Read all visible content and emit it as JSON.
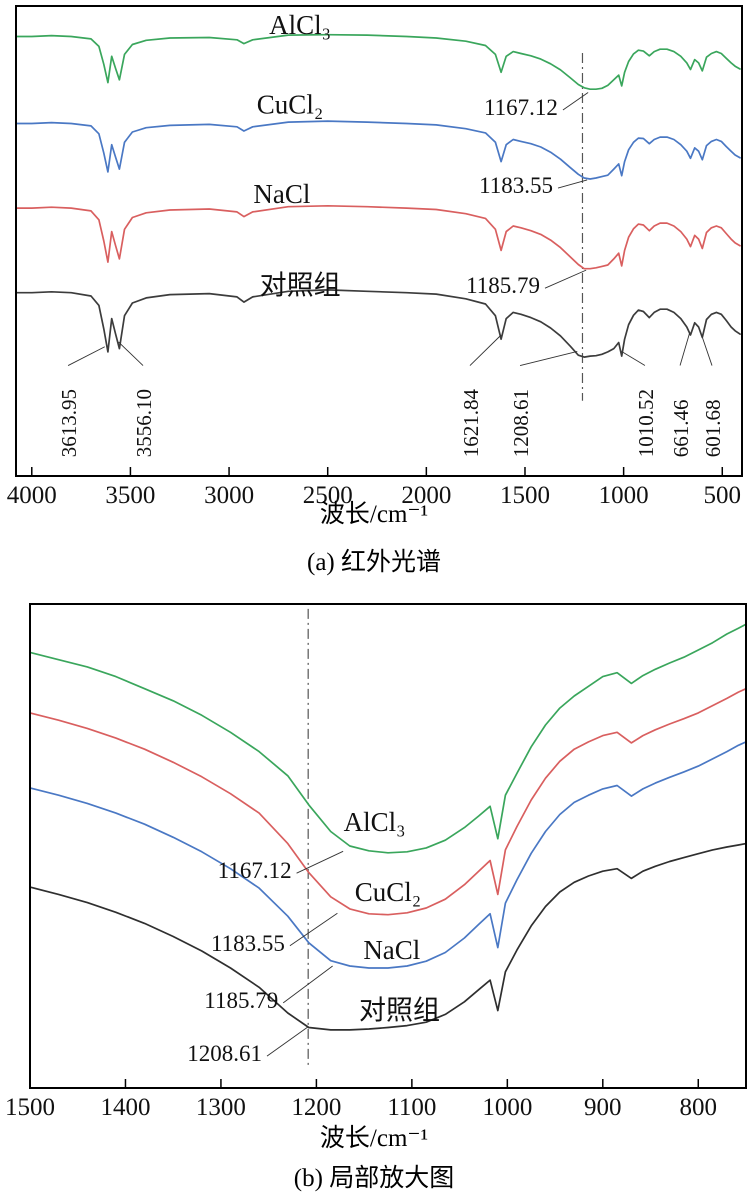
{
  "figure": {
    "background": "#ffffff",
    "axis_color": "#000000",
    "annotation_color": "#000000",
    "reference_line_color": "#555555"
  },
  "chart_data": [
    {
      "id": "a",
      "type": "line",
      "caption": "(a) 红外光谱",
      "xlabel": "波长/cm⁻¹",
      "ylabel": "",
      "grid": false,
      "legend_position": "inline-labels",
      "ylim": [
        0,
        100
      ],
      "x_axis": {
        "range": [
          4080,
          400
        ],
        "reversed": true,
        "ticks": [
          4000,
          3500,
          3000,
          2500,
          2000,
          1500,
          1000,
          500
        ]
      },
      "vline": {
        "x": 1208.61,
        "y_from": 16,
        "y_to": 90,
        "color": "#555555",
        "style": "dash-dot"
      },
      "x": [
        4075,
        4000,
        3900,
        3800,
        3700,
        3660,
        3635,
        3614,
        3595,
        3575,
        3556,
        3530,
        3490,
        3420,
        3300,
        3100,
        2960,
        2925,
        2880,
        2700,
        2500,
        2300,
        2100,
        1950,
        1800,
        1700,
        1650,
        1621,
        1595,
        1560,
        1520,
        1470,
        1420,
        1370,
        1320,
        1270,
        1230,
        1200,
        1170,
        1140,
        1110,
        1080,
        1050,
        1025,
        1010,
        995,
        975,
        950,
        925,
        900,
        870,
        845,
        815,
        780,
        745,
        710,
        680,
        661,
        640,
        620,
        601,
        580,
        555,
        530,
        505,
        480,
        455,
        435,
        410
      ],
      "series": [
        {
          "key": "alcl3",
          "name": "AlCl₃",
          "color": "#3aa65c",
          "y": [
            93.5,
            93.5,
            93.7,
            93.5,
            93.0,
            91.4,
            87.6,
            83.7,
            89.3,
            86.7,
            84.3,
            89.7,
            91.8,
            92.7,
            93.2,
            93.3,
            92.8,
            92.0,
            92.8,
            93.8,
            93.9,
            93.8,
            93.5,
            93.2,
            92.5,
            91.6,
            89.7,
            85.9,
            89.3,
            90.3,
            89.9,
            89.4,
            88.7,
            87.7,
            86.4,
            84.7,
            83.3,
            82.6,
            82.3,
            82.3,
            82.5,
            83.1,
            84.3,
            85.3,
            83.0,
            85.9,
            88.2,
            89.8,
            90.6,
            90.4,
            89.4,
            90.3,
            90.8,
            90.8,
            90.3,
            89.3,
            87.9,
            86.5,
            88.6,
            87.9,
            86.2,
            89.1,
            89.9,
            90.3,
            89.9,
            88.9,
            87.9,
            87.2,
            86.6
          ]
        },
        {
          "key": "cucl2",
          "name": "CuCl₂",
          "color": "#4a78c4",
          "y": [
            75.0,
            75.0,
            75.2,
            75.0,
            74.5,
            72.8,
            68.7,
            64.7,
            70.5,
            67.8,
            65.3,
            71.0,
            73.2,
            74.1,
            74.6,
            74.8,
            74.3,
            73.4,
            74.3,
            75.3,
            75.5,
            75.3,
            75.0,
            74.7,
            73.9,
            73.0,
            71.0,
            66.9,
            70.5,
            71.6,
            71.2,
            70.7,
            70.0,
            68.9,
            67.4,
            65.6,
            64.2,
            63.4,
            63.2,
            63.4,
            63.7,
            64.0,
            65.3,
            66.4,
            63.9,
            66.9,
            69.4,
            71.0,
            71.9,
            71.8,
            70.7,
            71.6,
            72.1,
            72.1,
            71.6,
            70.5,
            69.1,
            67.6,
            69.8,
            69.1,
            67.3,
            70.3,
            71.2,
            71.6,
            71.2,
            70.1,
            69.1,
            68.3,
            67.7
          ]
        },
        {
          "key": "nacl",
          "name": "NaCl",
          "color": "#d95f5f",
          "y": [
            57.0,
            57.0,
            57.2,
            57.0,
            56.4,
            54.5,
            50.0,
            45.5,
            52.0,
            49.0,
            46.2,
            52.5,
            55.0,
            56.0,
            56.6,
            56.8,
            56.2,
            55.2,
            56.2,
            57.3,
            57.5,
            57.3,
            57.0,
            56.7,
            55.8,
            54.8,
            52.5,
            48.0,
            52.0,
            53.2,
            52.8,
            52.2,
            51.4,
            50.2,
            48.6,
            46.6,
            45.0,
            44.1,
            44.1,
            44.3,
            44.6,
            44.9,
            46.2,
            47.4,
            44.7,
            48.0,
            50.8,
            52.6,
            53.6,
            53.4,
            52.2,
            53.2,
            53.8,
            53.8,
            53.2,
            52.0,
            50.4,
            48.8,
            51.2,
            50.4,
            48.4,
            51.8,
            52.8,
            53.2,
            52.8,
            51.6,
            50.4,
            49.6,
            49.0
          ]
        },
        {
          "key": "control",
          "name": "对照组",
          "color": "#3c3c3c",
          "y": [
            39.0,
            39.0,
            39.2,
            39.0,
            38.3,
            36.3,
            31.3,
            26.4,
            33.5,
            30.2,
            27.1,
            34.1,
            36.8,
            37.9,
            38.6,
            38.8,
            38.1,
            37.0,
            38.1,
            39.3,
            39.6,
            39.3,
            39.0,
            38.7,
            37.7,
            36.6,
            34.1,
            29.1,
            33.5,
            34.8,
            34.4,
            33.7,
            32.8,
            31.5,
            29.8,
            27.6,
            25.7,
            25.3,
            25.5,
            25.6,
            25.9,
            26.4,
            27.1,
            28.4,
            25.5,
            29.1,
            32.2,
            34.2,
            35.3,
            35.0,
            33.7,
            34.8,
            35.5,
            35.5,
            34.8,
            33.5,
            31.7,
            30.0,
            32.6,
            31.7,
            29.5,
            33.3,
            34.4,
            34.8,
            34.4,
            33.1,
            31.7,
            30.9,
            30.2
          ]
        }
      ],
      "series_labels": [
        {
          "text": "AlCl₃",
          "x": 2640,
          "y": 96
        },
        {
          "text": "CuCl₂",
          "x": 2691,
          "y": 79
        },
        {
          "text": "NaCl",
          "x": 2732,
          "y": 60
        },
        {
          "text": "对照组",
          "x": 2640,
          "y": 40.5
        }
      ],
      "peak_labels": [
        {
          "text": "1167.12",
          "anchor_x": 1333,
          "anchor_y": 78.5,
          "target_x": 1180,
          "target_y": 81.6
        },
        {
          "text": "1183.55",
          "anchor_x": 1358,
          "anchor_y": 61.9,
          "target_x": 1185,
          "target_y": 63.0
        },
        {
          "text": "1185.79",
          "anchor_x": 1424,
          "anchor_y": 40.6,
          "target_x": 1190,
          "target_y": 43.8
        }
      ],
      "rotated_peak_labels": [
        {
          "text": "3613.95",
          "x": 3816,
          "target_x": 3630,
          "target_y": 27.5
        },
        {
          "text": "3556.10",
          "x": 3436,
          "target_x": 3560,
          "target_y": 28.5
        },
        {
          "text": "1621.84",
          "x": 1779,
          "target_x": 1621,
          "target_y": 30.0
        },
        {
          "text": "1208.61",
          "x": 1525,
          "target_x": 1235,
          "target_y": 26.5
        },
        {
          "text": "1010.52",
          "x": 892,
          "target_x": 1010,
          "target_y": 26.5
        },
        {
          "text": "661.46",
          "x": 714,
          "target_x": 665,
          "target_y": 30.5
        },
        {
          "text": "601.68",
          "x": 552,
          "target_x": 605,
          "target_y": 30.0
        }
      ]
    },
    {
      "id": "b",
      "type": "line",
      "caption": "(b) 局部放大图",
      "xlabel": "波长/cm⁻¹",
      "ylabel": "",
      "grid": false,
      "legend_position": "inline-labels",
      "ylim": [
        0,
        100
      ],
      "x_axis": {
        "range": [
          1500,
          750
        ],
        "reversed": true,
        "ticks": [
          1500,
          1400,
          1300,
          1200,
          1100,
          1000,
          900,
          800
        ]
      },
      "vline": {
        "x": 1208.61,
        "y_from": 4,
        "y_to": 99,
        "color": "#555555",
        "style": "dash-dot"
      },
      "x": [
        1500,
        1470,
        1440,
        1410,
        1380,
        1350,
        1320,
        1290,
        1260,
        1230,
        1208,
        1185,
        1165,
        1145,
        1125,
        1105,
        1085,
        1065,
        1045,
        1030,
        1018,
        1010,
        1002,
        990,
        975,
        960,
        945,
        930,
        915,
        900,
        885,
        870,
        858,
        845,
        830,
        815,
        800,
        785,
        770,
        758,
        750
      ],
      "series": [
        {
          "key": "alcl3",
          "name": "AlCl₃",
          "color": "#3aa65c",
          "y": [
            90.0,
            88.5,
            87.0,
            85.0,
            82.5,
            80.0,
            77.0,
            73.5,
            69.5,
            64.5,
            58.5,
            53.0,
            50.0,
            49.0,
            48.6,
            48.8,
            49.6,
            51.2,
            53.8,
            56.2,
            58.2,
            51.5,
            60.5,
            65.0,
            70.5,
            75.0,
            78.5,
            81.0,
            83.0,
            85.0,
            85.8,
            83.6,
            85.2,
            86.5,
            87.8,
            89.0,
            90.5,
            92.0,
            93.8,
            95.0,
            95.8
          ]
        },
        {
          "key": "cucl2",
          "name": "CuCl₂",
          "color": "#d95f5f",
          "y": [
            77.5,
            76.0,
            74.3,
            72.3,
            70.0,
            67.3,
            64.3,
            60.8,
            56.8,
            50.5,
            44.5,
            39.5,
            37.0,
            36.0,
            35.8,
            36.2,
            37.2,
            39.0,
            42.0,
            44.8,
            47.0,
            40.0,
            49.2,
            54.0,
            59.5,
            64.0,
            67.5,
            70.0,
            71.5,
            72.8,
            73.5,
            71.3,
            72.8,
            74.0,
            75.2,
            76.3,
            77.5,
            79.0,
            80.5,
            81.8,
            82.5
          ]
        },
        {
          "key": "nacl",
          "name": "NaCl",
          "color": "#4a78c4",
          "y": [
            62.0,
            60.5,
            58.8,
            56.8,
            54.5,
            51.8,
            48.8,
            45.3,
            41.3,
            35.5,
            30.0,
            26.3,
            25.2,
            24.8,
            24.8,
            25.2,
            26.2,
            28.0,
            31.0,
            33.8,
            36.0,
            29.0,
            38.2,
            43.0,
            48.5,
            53.0,
            56.5,
            59.0,
            60.5,
            61.8,
            62.5,
            60.3,
            61.8,
            63.0,
            64.2,
            65.3,
            66.5,
            68.0,
            69.5,
            70.8,
            71.5
          ]
        },
        {
          "key": "control",
          "name": "对照组",
          "color": "#2f2f2f",
          "y": [
            41.5,
            40.0,
            38.3,
            36.3,
            34.0,
            31.3,
            28.3,
            24.8,
            20.8,
            15.5,
            12.5,
            12.0,
            12.0,
            12.2,
            12.5,
            12.9,
            13.6,
            15.2,
            17.8,
            20.3,
            22.3,
            16.0,
            24.0,
            28.5,
            33.5,
            37.5,
            40.5,
            42.5,
            43.8,
            44.8,
            45.3,
            43.3,
            44.8,
            45.8,
            46.8,
            47.6,
            48.4,
            49.2,
            49.8,
            50.2,
            50.5
          ]
        }
      ],
      "series_labels": [
        {
          "text": "AlCl₃",
          "x": 1139,
          "y": 55
        },
        {
          "text": "CuCl₂",
          "x": 1125,
          "y": 40.5
        },
        {
          "text": "NaCl",
          "x": 1121,
          "y": 28.5
        },
        {
          "text": "对照组",
          "x": 1113,
          "y": 16
        }
      ],
      "peak_labels": [
        {
          "text": "1167.12",
          "anchor_x": 1226,
          "anchor_y": 45.0,
          "target_x": 1172,
          "target_y": 48.9
        },
        {
          "text": "1183.55",
          "anchor_x": 1233,
          "anchor_y": 30.0,
          "target_x": 1178,
          "target_y": 36.1
        },
        {
          "text": "1185.79",
          "anchor_x": 1240,
          "anchor_y": 18.2,
          "target_x": 1183,
          "target_y": 25.2
        },
        {
          "text": "1208.61",
          "anchor_x": 1257,
          "anchor_y": 7.2,
          "target_x": 1209,
          "target_y": 12.6
        }
      ],
      "rotated_peak_labels": []
    }
  ]
}
